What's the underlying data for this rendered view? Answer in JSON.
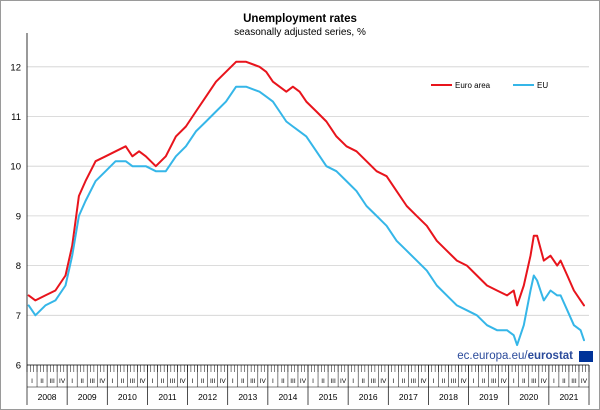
{
  "chart_data": {
    "type": "line",
    "title": "Unemployment rates",
    "subtitle": "seasonally adjusted series, %",
    "ylim": [
      6,
      12.6
    ],
    "yticks": [
      6,
      7,
      8,
      9,
      10,
      11,
      12
    ],
    "grid": true,
    "legend_position": "top-right",
    "quarter_labels": [
      "I",
      "II",
      "III",
      "IV"
    ],
    "years": [
      "2008",
      "2009",
      "2010",
      "2011",
      "2012",
      "2013",
      "2014",
      "2015",
      "2016",
      "2017",
      "2018",
      "2019",
      "2020",
      "2021"
    ],
    "x_start": "2008-01",
    "x_end": "2021-12",
    "series": [
      {
        "name": "Euro area",
        "color": "#e8141c",
        "points": [
          [
            "2008-01",
            7.4
          ],
          [
            "2008-03",
            7.3
          ],
          [
            "2008-06",
            7.4
          ],
          [
            "2008-09",
            7.5
          ],
          [
            "2008-12",
            7.8
          ],
          [
            "2009-02",
            8.4
          ],
          [
            "2009-04",
            9.4
          ],
          [
            "2009-06",
            9.7
          ],
          [
            "2009-09",
            10.1
          ],
          [
            "2009-12",
            10.2
          ],
          [
            "2010-03",
            10.3
          ],
          [
            "2010-06",
            10.4
          ],
          [
            "2010-08",
            10.2
          ],
          [
            "2010-10",
            10.3
          ],
          [
            "2010-12",
            10.2
          ],
          [
            "2011-03",
            10.0
          ],
          [
            "2011-06",
            10.2
          ],
          [
            "2011-09",
            10.6
          ],
          [
            "2011-12",
            10.8
          ],
          [
            "2012-03",
            11.1
          ],
          [
            "2012-06",
            11.4
          ],
          [
            "2012-09",
            11.7
          ],
          [
            "2012-12",
            11.9
          ],
          [
            "2013-03",
            12.1
          ],
          [
            "2013-06",
            12.1
          ],
          [
            "2013-10",
            12.0
          ],
          [
            "2013-12",
            11.9
          ],
          [
            "2014-02",
            11.7
          ],
          [
            "2014-04",
            11.6
          ],
          [
            "2014-06",
            11.5
          ],
          [
            "2014-08",
            11.6
          ],
          [
            "2014-10",
            11.5
          ],
          [
            "2014-12",
            11.3
          ],
          [
            "2015-03",
            11.1
          ],
          [
            "2015-06",
            10.9
          ],
          [
            "2015-09",
            10.6
          ],
          [
            "2015-12",
            10.4
          ],
          [
            "2016-03",
            10.3
          ],
          [
            "2016-06",
            10.1
          ],
          [
            "2016-09",
            9.9
          ],
          [
            "2016-12",
            9.8
          ],
          [
            "2017-03",
            9.5
          ],
          [
            "2017-06",
            9.2
          ],
          [
            "2017-09",
            9.0
          ],
          [
            "2017-12",
            8.8
          ],
          [
            "2018-03",
            8.5
          ],
          [
            "2018-06",
            8.3
          ],
          [
            "2018-09",
            8.1
          ],
          [
            "2018-12",
            8.0
          ],
          [
            "2019-03",
            7.8
          ],
          [
            "2019-06",
            7.6
          ],
          [
            "2019-09",
            7.5
          ],
          [
            "2019-12",
            7.4
          ],
          [
            "2020-02",
            7.5
          ],
          [
            "2020-03",
            7.2
          ],
          [
            "2020-05",
            7.6
          ],
          [
            "2020-07",
            8.2
          ],
          [
            "2020-08",
            8.6
          ],
          [
            "2020-09",
            8.6
          ],
          [
            "2020-11",
            8.1
          ],
          [
            "2021-01",
            8.2
          ],
          [
            "2021-03",
            8.0
          ],
          [
            "2021-04",
            8.1
          ],
          [
            "2021-06",
            7.8
          ],
          [
            "2021-08",
            7.5
          ],
          [
            "2021-10",
            7.3
          ],
          [
            "2021-11",
            7.2
          ]
        ]
      },
      {
        "name": "EU",
        "color": "#35b6e8",
        "points": [
          [
            "2008-01",
            7.2
          ],
          [
            "2008-03",
            7.0
          ],
          [
            "2008-06",
            7.2
          ],
          [
            "2008-09",
            7.3
          ],
          [
            "2008-12",
            7.6
          ],
          [
            "2009-02",
            8.2
          ],
          [
            "2009-04",
            9.0
          ],
          [
            "2009-06",
            9.3
          ],
          [
            "2009-09",
            9.7
          ],
          [
            "2009-12",
            9.9
          ],
          [
            "2010-03",
            10.1
          ],
          [
            "2010-06",
            10.1
          ],
          [
            "2010-08",
            10.0
          ],
          [
            "2010-10",
            10.0
          ],
          [
            "2010-12",
            10.0
          ],
          [
            "2011-03",
            9.9
          ],
          [
            "2011-06",
            9.9
          ],
          [
            "2011-09",
            10.2
          ],
          [
            "2011-12",
            10.4
          ],
          [
            "2012-03",
            10.7
          ],
          [
            "2012-06",
            10.9
          ],
          [
            "2012-09",
            11.1
          ],
          [
            "2012-12",
            11.3
          ],
          [
            "2013-03",
            11.6
          ],
          [
            "2013-06",
            11.6
          ],
          [
            "2013-10",
            11.5
          ],
          [
            "2013-12",
            11.4
          ],
          [
            "2014-02",
            11.3
          ],
          [
            "2014-04",
            11.1
          ],
          [
            "2014-06",
            10.9
          ],
          [
            "2014-08",
            10.8
          ],
          [
            "2014-10",
            10.7
          ],
          [
            "2014-12",
            10.6
          ],
          [
            "2015-03",
            10.3
          ],
          [
            "2015-06",
            10.0
          ],
          [
            "2015-09",
            9.9
          ],
          [
            "2015-12",
            9.7
          ],
          [
            "2016-03",
            9.5
          ],
          [
            "2016-06",
            9.2
          ],
          [
            "2016-09",
            9.0
          ],
          [
            "2016-12",
            8.8
          ],
          [
            "2017-03",
            8.5
          ],
          [
            "2017-06",
            8.3
          ],
          [
            "2017-09",
            8.1
          ],
          [
            "2017-12",
            7.9
          ],
          [
            "2018-03",
            7.6
          ],
          [
            "2018-06",
            7.4
          ],
          [
            "2018-09",
            7.2
          ],
          [
            "2018-12",
            7.1
          ],
          [
            "2019-03",
            7.0
          ],
          [
            "2019-06",
            6.8
          ],
          [
            "2019-09",
            6.7
          ],
          [
            "2019-12",
            6.7
          ],
          [
            "2020-02",
            6.6
          ],
          [
            "2020-03",
            6.4
          ],
          [
            "2020-05",
            6.8
          ],
          [
            "2020-07",
            7.5
          ],
          [
            "2020-08",
            7.8
          ],
          [
            "2020-09",
            7.7
          ],
          [
            "2020-11",
            7.3
          ],
          [
            "2021-01",
            7.5
          ],
          [
            "2021-03",
            7.4
          ],
          [
            "2021-04",
            7.4
          ],
          [
            "2021-06",
            7.1
          ],
          [
            "2021-08",
            6.8
          ],
          [
            "2021-10",
            6.7
          ],
          [
            "2021-11",
            6.5
          ]
        ]
      }
    ]
  },
  "source": {
    "prefix": "ec.europa.eu/",
    "brand": "eurostat"
  },
  "flag_color": "#003399"
}
